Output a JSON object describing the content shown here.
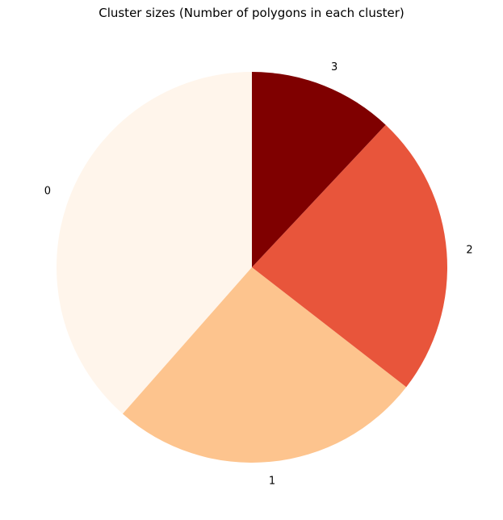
{
  "chart_data": {
    "type": "pie",
    "title": "Cluster sizes (Number of polygons in each cluster)",
    "start_angle": 90,
    "direction": "counterclockwise",
    "slices": [
      {
        "label": "0",
        "value": 38.5,
        "color": "#fff5eb"
      },
      {
        "label": "1",
        "value": 26.0,
        "color": "#fdc48e"
      },
      {
        "label": "2",
        "value": 23.5,
        "color": "#e8553b"
      },
      {
        "label": "3",
        "value": 12.0,
        "color": "#7f0000"
      }
    ]
  }
}
